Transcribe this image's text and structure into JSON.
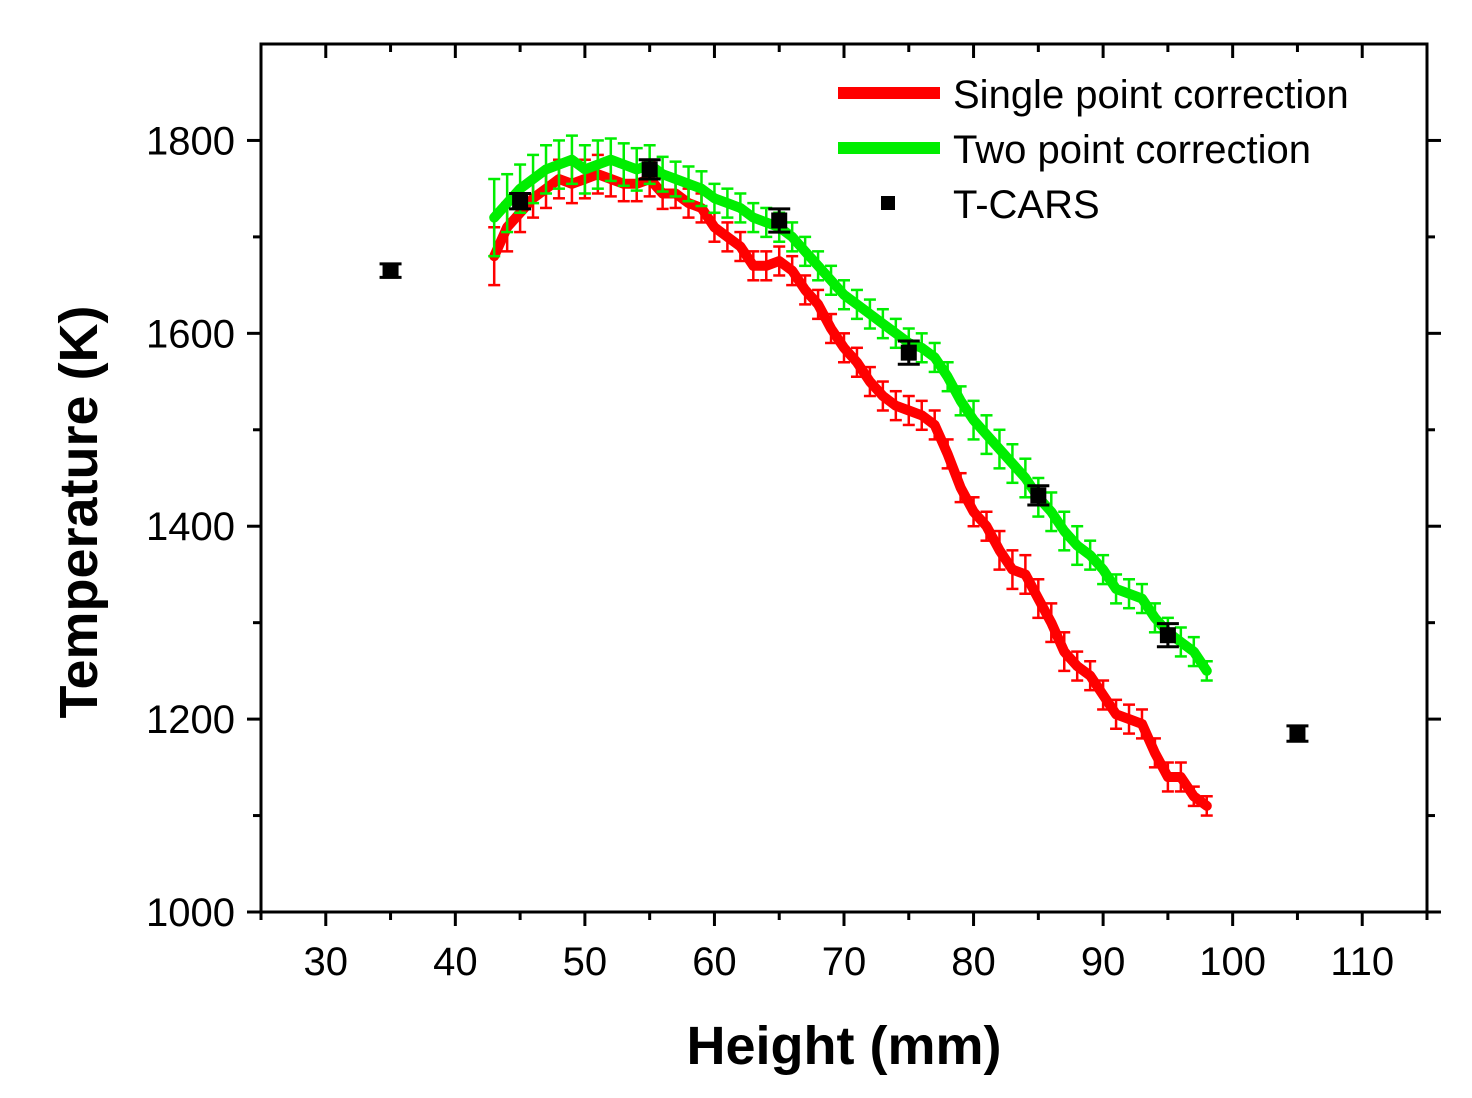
{
  "chart_data": {
    "type": "line",
    "title": "",
    "xlabel": "Height (mm)",
    "ylabel": "Temperature (K)",
    "xlim": [
      25,
      115
    ],
    "ylim": [
      1000,
      1900
    ],
    "x_ticks": [
      30,
      40,
      50,
      60,
      70,
      80,
      90,
      100,
      110
    ],
    "y_ticks": [
      1000,
      1200,
      1400,
      1600,
      1800
    ],
    "grid": false,
    "legend_position": "top-right",
    "series": [
      {
        "name": "Single point correction",
        "type": "line",
        "color": "#ff0000",
        "x": [
          43,
          44,
          45,
          46,
          47,
          48,
          49,
          50,
          51,
          52,
          53,
          54,
          55,
          56,
          57,
          58,
          59,
          60,
          61,
          62,
          63,
          64,
          65,
          66,
          67,
          68,
          69,
          70,
          71,
          72,
          73,
          74,
          75,
          76,
          77,
          78,
          79,
          80,
          81,
          82,
          83,
          84,
          85,
          86,
          87,
          88,
          89,
          90,
          91,
          92,
          93,
          94,
          95,
          96,
          97,
          98
        ],
        "y": [
          1680,
          1710,
          1725,
          1740,
          1750,
          1760,
          1755,
          1760,
          1765,
          1760,
          1755,
          1755,
          1760,
          1745,
          1745,
          1735,
          1730,
          1710,
          1700,
          1690,
          1670,
          1670,
          1675,
          1665,
          1645,
          1630,
          1605,
          1585,
          1570,
          1550,
          1535,
          1525,
          1520,
          1515,
          1505,
          1475,
          1440,
          1415,
          1400,
          1375,
          1355,
          1350,
          1325,
          1300,
          1270,
          1255,
          1245,
          1225,
          1205,
          1200,
          1195,
          1165,
          1140,
          1140,
          1120,
          1110
        ],
        "err": [
          30,
          25,
          20,
          20,
          20,
          20,
          20,
          20,
          20,
          18,
          18,
          18,
          18,
          16,
          15,
          15,
          15,
          15,
          15,
          15,
          15,
          15,
          15,
          15,
          15,
          15,
          15,
          15,
          15,
          15,
          15,
          15,
          15,
          15,
          15,
          15,
          15,
          15,
          15,
          20,
          20,
          20,
          20,
          20,
          20,
          15,
          15,
          15,
          15,
          15,
          15,
          15,
          15,
          15,
          10,
          10
        ]
      },
      {
        "name": "Two point correction",
        "type": "line",
        "color": "#00ee00",
        "x": [
          43,
          44,
          45,
          46,
          47,
          48,
          49,
          50,
          51,
          52,
          53,
          54,
          55,
          56,
          57,
          58,
          59,
          60,
          61,
          62,
          63,
          64,
          65,
          66,
          67,
          68,
          69,
          70,
          71,
          72,
          73,
          74,
          75,
          76,
          77,
          78,
          79,
          80,
          81,
          82,
          83,
          84,
          85,
          86,
          87,
          88,
          89,
          90,
          91,
          92,
          93,
          94,
          95,
          96,
          97,
          98
        ],
        "y": [
          1720,
          1735,
          1750,
          1760,
          1770,
          1775,
          1780,
          1770,
          1775,
          1780,
          1775,
          1770,
          1775,
          1765,
          1760,
          1755,
          1750,
          1740,
          1735,
          1730,
          1720,
          1715,
          1710,
          1700,
          1685,
          1670,
          1655,
          1640,
          1630,
          1620,
          1610,
          1600,
          1590,
          1585,
          1575,
          1555,
          1530,
          1510,
          1495,
          1480,
          1465,
          1450,
          1430,
          1415,
          1395,
          1380,
          1370,
          1355,
          1335,
          1330,
          1325,
          1305,
          1290,
          1280,
          1270,
          1250
        ],
        "err": [
          40,
          30,
          25,
          25,
          25,
          25,
          25,
          25,
          25,
          22,
          22,
          22,
          20,
          18,
          18,
          18,
          18,
          15,
          15,
          15,
          15,
          15,
          15,
          15,
          15,
          15,
          15,
          15,
          15,
          15,
          15,
          15,
          15,
          15,
          15,
          15,
          15,
          20,
          20,
          20,
          20,
          20,
          20,
          20,
          20,
          20,
          15,
          15,
          15,
          15,
          15,
          15,
          15,
          15,
          15,
          10
        ]
      },
      {
        "name": "T-CARS",
        "type": "scatter",
        "color": "#000000",
        "x": [
          35,
          45,
          55,
          65,
          75,
          85,
          95,
          105
        ],
        "y": [
          1665,
          1737,
          1770,
          1717,
          1580,
          1432,
          1287,
          1185
        ],
        "err": [
          7,
          8,
          10,
          12,
          12,
          10,
          12,
          8
        ]
      }
    ]
  }
}
